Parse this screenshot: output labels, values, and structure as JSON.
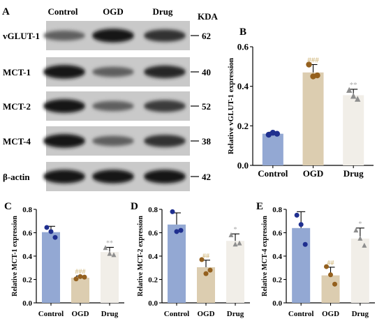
{
  "panel_a": {
    "letter": "A",
    "lane_labels": [
      "Control",
      "OGD",
      "Drug"
    ],
    "unit_label": "KDA",
    "rows": [
      {
        "protein": "vGLUT-1",
        "kda": "62",
        "band_darkness": [
          0.55,
          0.95,
          0.8
        ]
      },
      {
        "protein": "MCT-1",
        "kda": "40",
        "band_darkness": [
          0.95,
          0.55,
          0.85
        ]
      },
      {
        "protein": "MCT-2",
        "kda": "52",
        "band_darkness": [
          0.95,
          0.55,
          0.75
        ]
      },
      {
        "protein": "MCT-4",
        "kda": "38",
        "band_darkness": [
          0.95,
          0.55,
          0.8
        ]
      },
      {
        "protein": "β-actin",
        "kda": "42",
        "band_darkness": [
          0.95,
          0.95,
          0.95
        ]
      }
    ]
  },
  "colors": {
    "control": "#93a8d3",
    "ogd": "#dccdb0",
    "drug": "#f1eee8",
    "control_dot": "#1f2f8f",
    "ogd_dot": "#94601e",
    "drug_dot": "#8e8e8e",
    "sig_ogd": "#ccaf6d",
    "sig_drug": "#a9a9a9"
  },
  "chart_data": [
    {
      "panel": "B",
      "type": "bar",
      "categories": [
        "Control",
        "OGD",
        "Drug"
      ],
      "values": [
        0.16,
        0.47,
        0.355
      ],
      "errors": [
        0.008,
        0.04,
        0.03
      ],
      "points": [
        [
          0.155,
          0.165,
          0.16
        ],
        [
          0.51,
          0.45,
          0.455
        ],
        [
          0.38,
          0.35,
          0.335
        ]
      ],
      "ylabel": "Relative vGLUT-1 expression",
      "ylim": [
        0,
        0.6
      ],
      "yticks": [
        "0.0",
        "0.2",
        "0.4",
        "0.6"
      ],
      "significance": [
        "",
        "###",
        "**"
      ]
    },
    {
      "panel": "C",
      "type": "bar",
      "categories": [
        "Control",
        "OGD",
        "Drug"
      ],
      "values": [
        0.605,
        0.215,
        0.435
      ],
      "errors": [
        0.05,
        0.015,
        0.04
      ],
      "points": [
        [
          0.645,
          0.61,
          0.56
        ],
        [
          0.205,
          0.225,
          0.22
        ],
        [
          0.47,
          0.42,
          0.41
        ]
      ],
      "ylabel": "Relative MCT-1 expression",
      "ylim": [
        0,
        0.8
      ],
      "yticks": [
        "0.0",
        "0.2",
        "0.4",
        "0.6",
        "0.8"
      ],
      "significance": [
        "",
        "###",
        "**"
      ]
    },
    {
      "panel": "D",
      "type": "bar",
      "categories": [
        "Control",
        "OGD",
        "Drug"
      ],
      "values": [
        0.67,
        0.305,
        0.53
      ],
      "errors": [
        0.1,
        0.06,
        0.06
      ],
      "points": [
        [
          0.78,
          0.61,
          0.62
        ],
        [
          0.37,
          0.25,
          0.28
        ],
        [
          0.58,
          0.5,
          0.51
        ]
      ],
      "ylabel": "Relative MCT-2 expression",
      "ylim": [
        0,
        0.8
      ],
      "yticks": [
        "0.0",
        "0.2",
        "0.4",
        "0.6",
        "0.8"
      ],
      "significance": [
        "",
        "##",
        "*"
      ]
    },
    {
      "panel": "E",
      "type": "bar",
      "categories": [
        "Control",
        "OGD",
        "Drug"
      ],
      "values": [
        0.64,
        0.235,
        0.55
      ],
      "errors": [
        0.14,
        0.07,
        0.09
      ],
      "points": [
        [
          0.75,
          0.67,
          0.5
        ],
        [
          0.31,
          0.24,
          0.16
        ],
        [
          0.62,
          0.55,
          0.49
        ]
      ],
      "ylabel": "Relative MCT-4 expression",
      "ylim": [
        0,
        0.8
      ],
      "yticks": [
        "0.0",
        "0.2",
        "0.4",
        "0.6",
        "0.8"
      ],
      "significance": [
        "",
        "##",
        "*"
      ]
    }
  ]
}
